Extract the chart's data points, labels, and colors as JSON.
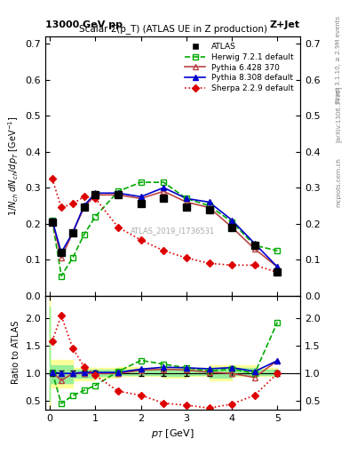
{
  "title_top": "13000 GeV pp",
  "title_right": "Z+Jet",
  "plot_title": "Scalar Σ(p_T) (ATLAS UE in Z production)",
  "watermark": "ATLAS_2019_I1736531",
  "ylabel_main": "1/N$_{ch}$ dN$_{ch}$/dp$_T$ [GeV$^{-1}$]",
  "ylabel_ratio": "Ratio to ATLAS",
  "xlabel": "p$_T$ [GeV]",
  "ylim_main": [
    0.0,
    0.72
  ],
  "ylim_ratio": [
    0.35,
    2.4
  ],
  "right_label": "Rivet 3.1.10, ≥ 2.9M events",
  "arxiv_label": "[arXiv:1306.3436]",
  "mcplots_label": "mcplots.cern.ch",
  "atlas_x": [
    0.05,
    0.25,
    0.5,
    0.75,
    1.0,
    1.5,
    2.0,
    2.5,
    3.0,
    3.5,
    4.0,
    4.5,
    5.0
  ],
  "atlas_y": [
    0.205,
    0.12,
    0.175,
    0.245,
    0.28,
    0.28,
    0.255,
    0.27,
    0.245,
    0.24,
    0.19,
    0.14,
    0.065
  ],
  "herwig_x": [
    0.05,
    0.25,
    0.5,
    0.75,
    1.0,
    1.5,
    2.0,
    2.5,
    3.0,
    3.5,
    4.0,
    4.5,
    5.0
  ],
  "herwig_y": [
    0.21,
    0.055,
    0.105,
    0.17,
    0.22,
    0.29,
    0.315,
    0.315,
    0.27,
    0.25,
    0.205,
    0.14,
    0.125
  ],
  "pythia6_x": [
    0.05,
    0.25,
    0.5,
    0.75,
    1.0,
    1.5,
    2.0,
    2.5,
    3.0,
    3.5,
    4.0,
    4.5,
    5.0
  ],
  "pythia6_y": [
    0.21,
    0.105,
    0.175,
    0.245,
    0.28,
    0.28,
    0.27,
    0.29,
    0.26,
    0.245,
    0.19,
    0.13,
    0.08
  ],
  "pythia8_x": [
    0.05,
    0.25,
    0.5,
    0.75,
    1.0,
    1.5,
    2.0,
    2.5,
    3.0,
    3.5,
    4.0,
    4.5,
    5.0
  ],
  "pythia8_y": [
    0.21,
    0.12,
    0.175,
    0.25,
    0.285,
    0.285,
    0.275,
    0.3,
    0.27,
    0.26,
    0.21,
    0.145,
    0.08
  ],
  "sherpa_x": [
    0.05,
    0.25,
    0.5,
    0.75,
    1.0,
    1.5,
    2.0,
    2.5,
    3.0,
    3.5,
    4.0,
    4.5,
    5.0
  ],
  "sherpa_y": [
    0.325,
    0.245,
    0.255,
    0.275,
    0.27,
    0.19,
    0.155,
    0.125,
    0.105,
    0.09,
    0.085,
    0.085,
    0.065
  ],
  "atlas_color": "#000000",
  "herwig_color": "#00aa00",
  "pythia6_color": "#bb4444",
  "pythia8_color": "#0000cc",
  "sherpa_color": "#dd0000",
  "band_yellow_x": [
    0.0,
    0.5,
    1.0,
    1.5,
    2.0,
    2.5,
    3.0,
    3.5,
    4.0,
    4.5,
    5.0
  ],
  "band_yellow_lo": [
    0.4,
    0.75,
    0.87,
    0.93,
    0.95,
    0.95,
    0.92,
    0.95,
    0.88,
    0.95,
    0.95
  ],
  "band_yellow_hi": [
    2.5,
    1.25,
    1.1,
    1.1,
    1.12,
    1.1,
    1.12,
    1.1,
    1.15,
    1.15,
    1.1
  ],
  "band_green_x": [
    0.0,
    0.5,
    1.0,
    1.5,
    2.0,
    2.5,
    3.0,
    3.5,
    4.0,
    4.5,
    5.0
  ],
  "band_green_lo": [
    0.5,
    0.83,
    0.92,
    0.96,
    0.97,
    0.97,
    0.95,
    0.97,
    0.92,
    0.97,
    0.97
  ],
  "band_green_hi": [
    2.2,
    1.15,
    1.06,
    1.06,
    1.07,
    1.06,
    1.08,
    1.06,
    1.1,
    1.1,
    1.06
  ]
}
